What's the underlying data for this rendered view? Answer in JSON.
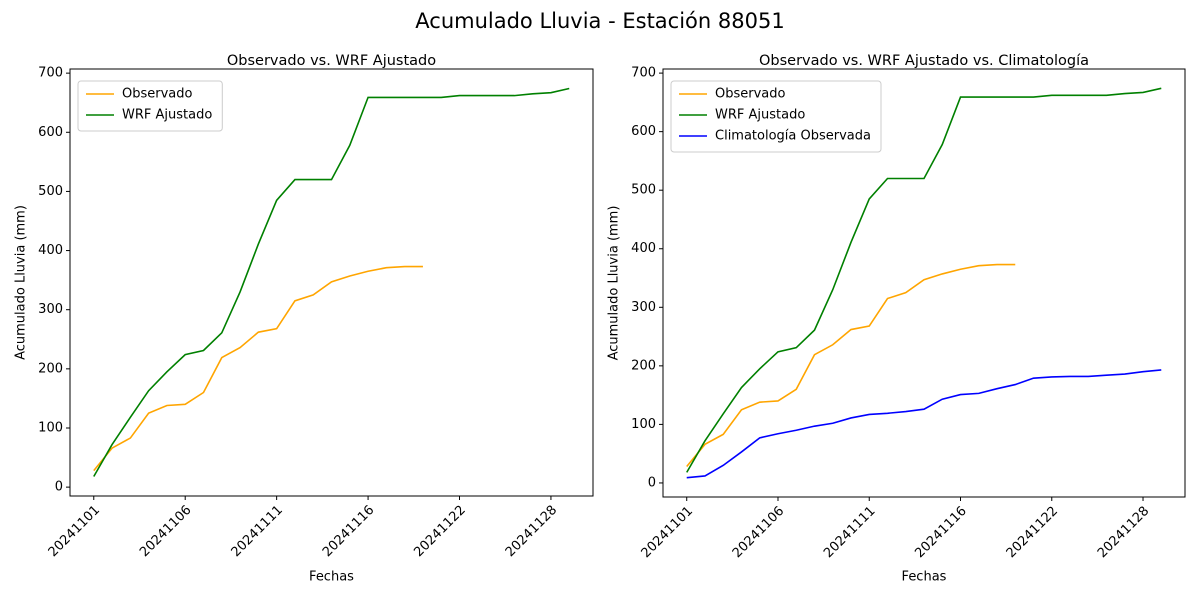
{
  "title": "Acumulado Lluvia - Estación 88051",
  "chart_data": [
    {
      "type": "line",
      "title": "Observado vs. WRF Ajustado",
      "xlabel": "Fechas",
      "ylabel": "Acumulado Lluvia (mm)",
      "categories": [
        "20241101",
        null,
        null,
        null,
        null,
        "20241106",
        null,
        null,
        null,
        null,
        "20241111",
        null,
        null,
        null,
        null,
        "20241116",
        null,
        null,
        null,
        null,
        "20241122",
        null,
        null,
        null,
        null,
        "20241128",
        null
      ],
      "series": [
        {
          "name": "Observado",
          "color": "#ffa500",
          "values": [
            28,
            66,
            83,
            125,
            138,
            140,
            160,
            219,
            236,
            262,
            268,
            315,
            325,
            347,
            357,
            365,
            371,
            373,
            373,
            null,
            null,
            null,
            null,
            null,
            null,
            null,
            null
          ]
        },
        {
          "name": "WRF Ajustado",
          "color": "#008000",
          "values": [
            18,
            72,
            118,
            163,
            195,
            224,
            231,
            261,
            330,
            411,
            485,
            520,
            520,
            520,
            578,
            659,
            659,
            659,
            659,
            659,
            662,
            662,
            662,
            662,
            665,
            667,
            674
          ]
        }
      ],
      "ylim": [
        -15,
        707
      ],
      "yticks": [
        0,
        100,
        200,
        300,
        400,
        500,
        600,
        700
      ],
      "legend": "upper left"
    },
    {
      "type": "line",
      "title": "Observado vs. WRF Ajustado vs. Climatología",
      "xlabel": "Fechas",
      "ylabel": "Acumulado Lluvia (mm)",
      "categories": [
        "20241101",
        null,
        null,
        null,
        null,
        "20241106",
        null,
        null,
        null,
        null,
        "20241111",
        null,
        null,
        null,
        null,
        "20241116",
        null,
        null,
        null,
        null,
        "20241122",
        null,
        null,
        null,
        null,
        "20241128",
        null
      ],
      "series": [
        {
          "name": "Observado",
          "color": "#ffa500",
          "values": [
            28,
            66,
            83,
            125,
            138,
            140,
            160,
            219,
            236,
            262,
            268,
            315,
            325,
            347,
            357,
            365,
            371,
            373,
            373,
            null,
            null,
            null,
            null,
            null,
            null,
            null,
            null
          ]
        },
        {
          "name": "WRF Ajustado",
          "color": "#008000",
          "values": [
            18,
            72,
            118,
            163,
            195,
            224,
            231,
            261,
            330,
            411,
            485,
            520,
            520,
            520,
            578,
            659,
            659,
            659,
            659,
            659,
            662,
            662,
            662,
            662,
            665,
            667,
            674
          ]
        },
        {
          "name": "Climatología Observada",
          "color": "#0000ff",
          "values": [
            9,
            12,
            30,
            53,
            77,
            84,
            90,
            97,
            102,
            111,
            117,
            119,
            122,
            126,
            143,
            151,
            153,
            161,
            168,
            179,
            181,
            182,
            182,
            184,
            186,
            190,
            193
          ]
        }
      ],
      "ylim": [
        -24,
        707
      ],
      "yticks": [
        0,
        100,
        200,
        300,
        400,
        500,
        600,
        700
      ],
      "legend": "upper left"
    }
  ]
}
